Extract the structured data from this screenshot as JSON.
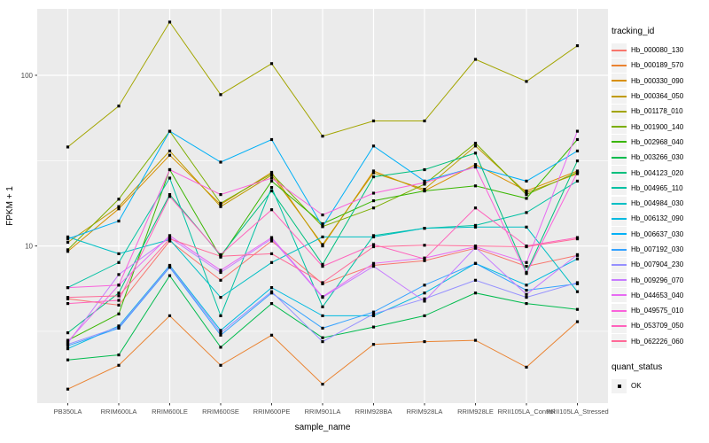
{
  "chart_data": {
    "type": "line",
    "title": "",
    "xlabel": "sample_name",
    "ylabel": "FPKM + 1",
    "x_categories": [
      "PB350LA",
      "RRIM600LA",
      "RRIM600LE",
      "RRIM600SE",
      "RRIM600PE",
      "RRIM901LA",
      "RRIM928BA",
      "RRIM928LA",
      "RRIM928LE",
      "RRII105LA_Control",
      "RRII105LA_Stressed"
    ],
    "y_axis": {
      "scale": "log10",
      "ticks": [
        10,
        100
      ],
      "tick_labels": [
        "10",
        "100"
      ],
      "minor_ticks": [
        3.162,
        31.623,
        316.23
      ],
      "ylim": [
        1.2,
        245
      ],
      "grid": true
    },
    "panel_background": "#EBEBEB",
    "gridline_color": "#FFFFFF",
    "point_marker": "black-square",
    "legend": {
      "title": "tracking_id",
      "position": "right"
    },
    "quant_legend": {
      "title": "quant_status",
      "items": [
        {
          "label": "OK",
          "marker": "black-square"
        }
      ]
    },
    "series": [
      {
        "name": "Hb_000080_130",
        "color": "#F8766D",
        "values": [
          4.9,
          4.5,
          10.7,
          6.3,
          10.7,
          6.0,
          7.7,
          8.2,
          9.7,
          7.6,
          8.8
        ]
      },
      {
        "name": "Hb_000189_570",
        "color": "#EA8331",
        "values": [
          1.45,
          2.0,
          3.9,
          2.0,
          3.0,
          1.55,
          2.65,
          2.75,
          2.8,
          1.95,
          3.6
        ]
      },
      {
        "name": "Hb_000330_090",
        "color": "#D89000",
        "values": [
          9.3,
          16.5,
          34,
          17.5,
          27,
          10.0,
          27.5,
          21.0,
          30,
          21.0,
          27.5
        ]
      },
      {
        "name": "Hb_000364_050",
        "color": "#C09B00",
        "values": [
          10.5,
          17.0,
          36,
          17.0,
          26,
          10.2,
          26.8,
          21.5,
          38.5,
          20.5,
          26.5
        ]
      },
      {
        "name": "Hb_001178_010",
        "color": "#A3A500",
        "values": [
          38,
          66,
          205,
          77,
          117,
          44,
          54,
          54,
          124,
          92,
          149
        ]
      },
      {
        "name": "Hb_001900_140",
        "color": "#7CAE00",
        "values": [
          9.5,
          18.8,
          47,
          17.8,
          26.5,
          13.0,
          16.7,
          23.0,
          40,
          20.0,
          27.0
        ]
      },
      {
        "name": "Hb_002968_040",
        "color": "#39B600",
        "values": [
          2.8,
          4.0,
          28,
          8.6,
          24,
          13.5,
          18.4,
          21.0,
          22.5,
          19.0,
          42
        ]
      },
      {
        "name": "Hb_003266_030",
        "color": "#00BB4E",
        "values": [
          2.15,
          2.3,
          6.7,
          2.55,
          4.6,
          2.9,
          3.35,
          3.9,
          5.3,
          4.6,
          4.25
        ]
      },
      {
        "name": "Hb_004123_020",
        "color": "#00BF7D",
        "values": [
          3.1,
          5.3,
          20,
          8.8,
          21,
          7.8,
          25.4,
          28,
          35,
          7.0,
          31.5
        ]
      },
      {
        "name": "Hb_004965_110",
        "color": "#00C1A3",
        "values": [
          5.7,
          8.0,
          25,
          3.9,
          22,
          4.4,
          11.5,
          12.7,
          13.2,
          15.7,
          24
        ]
      },
      {
        "name": "Hb_004984_030",
        "color": "#00BFC4",
        "values": [
          11.3,
          9.0,
          10.9,
          5.0,
          8.0,
          11.3,
          11.3,
          12.7,
          12.9,
          12.9,
          5.4
        ]
      },
      {
        "name": "Hb_006132_090",
        "color": "#00BAE0",
        "values": [
          2.5,
          3.4,
          7.7,
          3.2,
          5.7,
          3.9,
          3.9,
          5.3,
          7.9,
          5.9,
          8.4
        ]
      },
      {
        "name": "Hb_006637_030",
        "color": "#00B0F6",
        "values": [
          11.0,
          14.0,
          47,
          31,
          42,
          13.0,
          38.5,
          24,
          29,
          24,
          36
        ]
      },
      {
        "name": "Hb_007192_030",
        "color": "#35A2FF",
        "values": [
          2.6,
          3.3,
          7.5,
          3.0,
          5.3,
          3.3,
          4.1,
          5.9,
          7.9,
          5.5,
          6.0
        ]
      },
      {
        "name": "Hb_007904_230",
        "color": "#9590FF",
        "values": [
          2.65,
          3.35,
          7.6,
          3.1,
          5.4,
          2.75,
          4.0,
          4.9,
          6.3,
          5.0,
          6.1
        ]
      },
      {
        "name": "Hb_009296_070",
        "color": "#C77CFF",
        "values": [
          2.7,
          6.8,
          11.2,
          7.0,
          11.0,
          5.0,
          7.6,
          4.75,
          9.8,
          5.2,
          8.9
        ]
      },
      {
        "name": "Hb_044653_040",
        "color": "#E76BF3",
        "values": [
          2.75,
          5.9,
          11.5,
          7.2,
          11.2,
          5.05,
          7.9,
          8.5,
          9.9,
          8.0,
          47
        ]
      },
      {
        "name": "Hb_049575_010",
        "color": "#FA62DB",
        "values": [
          5.7,
          5.9,
          28,
          20,
          25,
          15.2,
          20.4,
          23.5,
          29,
          6.9,
          27
        ]
      },
      {
        "name": "Hb_053709_050",
        "color": "#FF62BC",
        "values": [
          4.6,
          4.8,
          19.5,
          8.9,
          16.3,
          7.6,
          10.2,
          8.4,
          16.7,
          10.0,
          11.2
        ]
      },
      {
        "name": "Hb_062226_060",
        "color": "#FF6A98",
        "values": [
          5.0,
          5.1,
          11.0,
          8.7,
          9.0,
          6.1,
          9.9,
          10.1,
          10.0,
          9.9,
          11.0
        ]
      }
    ]
  }
}
